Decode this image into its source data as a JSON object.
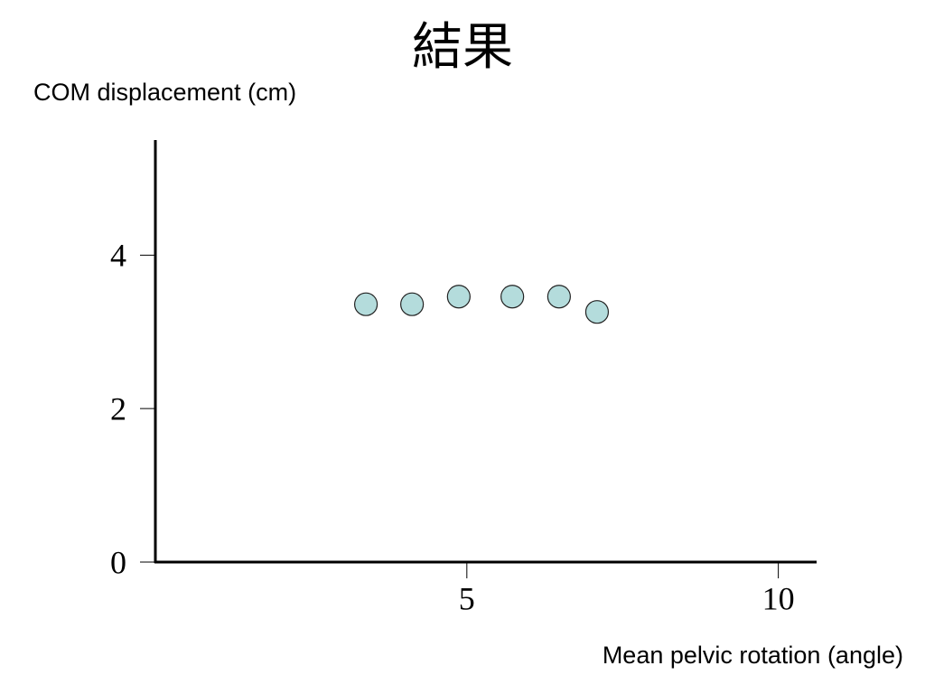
{
  "chart_data": {
    "type": "scatter",
    "title": "結果",
    "y_label": "COM displacement (cm)",
    "x_label": "Mean pelvic rotation (angle)",
    "x": [
      3.38,
      4.12,
      4.87,
      5.73,
      6.48,
      7.09
    ],
    "values": [
      3.36,
      3.36,
      3.46,
      3.46,
      3.46,
      3.26
    ],
    "color": "#b4dcdc",
    "xlim": [
      0,
      10.6
    ],
    "ylim": [
      0,
      5.5
    ],
    "xticks": [
      5,
      10
    ],
    "yticks": [
      0,
      2,
      4
    ]
  }
}
